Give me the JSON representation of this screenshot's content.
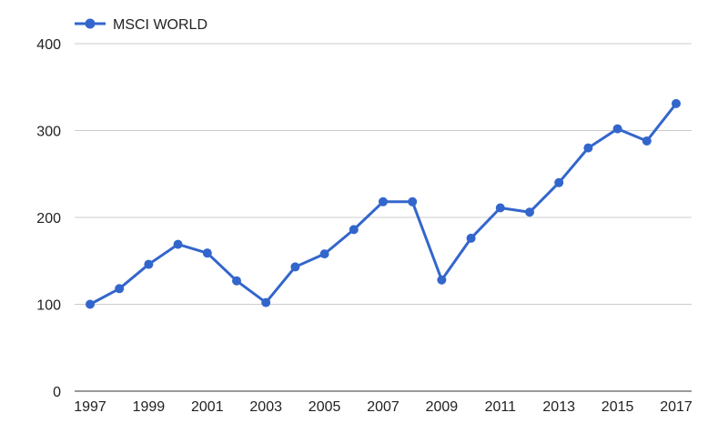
{
  "chart_data": {
    "type": "line",
    "title": "",
    "xlabel": "",
    "ylabel": "",
    "x": [
      1997,
      1998,
      1999,
      2000,
      2001,
      2002,
      2003,
      2004,
      2005,
      2006,
      2007,
      2008,
      2009,
      2010,
      2011,
      2012,
      2013,
      2014,
      2015,
      2016,
      2017
    ],
    "series": [
      {
        "name": "MSCI WORLD",
        "values": [
          100,
          118,
          146,
          169,
          159,
          127,
          102,
          143,
          158,
          186,
          218,
          218,
          128,
          176,
          211,
          206,
          240,
          280,
          302,
          288,
          331
        ],
        "color": "#3366cc"
      }
    ],
    "xlim": [
      1997,
      2017
    ],
    "ylim": [
      0,
      400
    ],
    "x_ticks": [
      "1997",
      "1999",
      "2001",
      "2003",
      "2005",
      "2007",
      "2009",
      "2011",
      "2013",
      "2015",
      "2017"
    ],
    "y_ticks": [
      "0",
      "100",
      "200",
      "300",
      "400"
    ],
    "grid": true,
    "legend": "top-left"
  }
}
